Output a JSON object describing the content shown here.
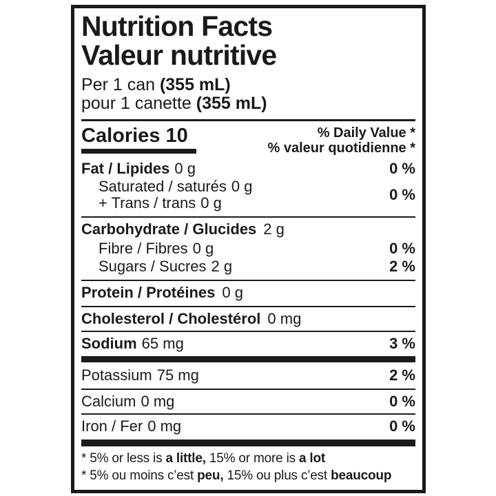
{
  "label": {
    "title_en": "Nutrition Facts",
    "title_fr": "Valeur nutritive",
    "serving": {
      "en_regular": "Per 1 can ",
      "en_bold": "(355 mL)",
      "fr_regular": "pour 1 canette ",
      "fr_bold": "(355 mL)"
    },
    "calories": "Calories 10",
    "daily_value_header_en": "% Daily Value *",
    "daily_value_header_fr": "% valeur quotidienne *",
    "nutrients": {
      "fat_name": "Fat / Lipides",
      "fat_amount": "0 g",
      "fat_percent": "0 %",
      "saturated_name": "Saturated / saturés",
      "saturated_amount": "0 g",
      "trans_name": "+ Trans / trans",
      "trans_amount": "0 g",
      "sat_trans_percent": "0 %",
      "carbohydrate_name": "Carbohydrate / Glucides",
      "carbohydrate_amount": "2 g",
      "fibre_name": "Fibre / Fibres",
      "fibre_amount": "0 g",
      "fibre_percent": "0 %",
      "sugars_name": "Sugars / Sucres",
      "sugars_amount": "2 g",
      "sugars_percent": "2 %",
      "protein_name": "Protein / Protéines",
      "protein_amount": "0 g",
      "cholesterol_name": "Cholesterol / Cholestérol",
      "cholesterol_amount": "0 mg",
      "sodium_name": "Sodium",
      "sodium_amount": "65 mg",
      "sodium_percent": "3 %",
      "potassium_name": "Potassium",
      "potassium_amount": "75 mg",
      "potassium_percent": "2 %",
      "calcium_name": "Calcium",
      "calcium_amount": "0 mg",
      "calcium_percent": "0 %",
      "iron_name": "Iron / Fer",
      "iron_amount": "0 mg",
      "iron_percent": "0 %"
    },
    "footnote_en": {
      "t1": "* 5% or less is ",
      "b1": "a little,",
      "t2": " 15% or more is ",
      "b2": "a lot"
    },
    "footnote_fr": {
      "t1": "* 5% ou moins c’est ",
      "b1": "peu,",
      "t2": " 15% ou plus c’est ",
      "b2": "beaucoup"
    },
    "colors": {
      "ink": "#1a1a1a",
      "background": "#ffffff"
    }
  }
}
